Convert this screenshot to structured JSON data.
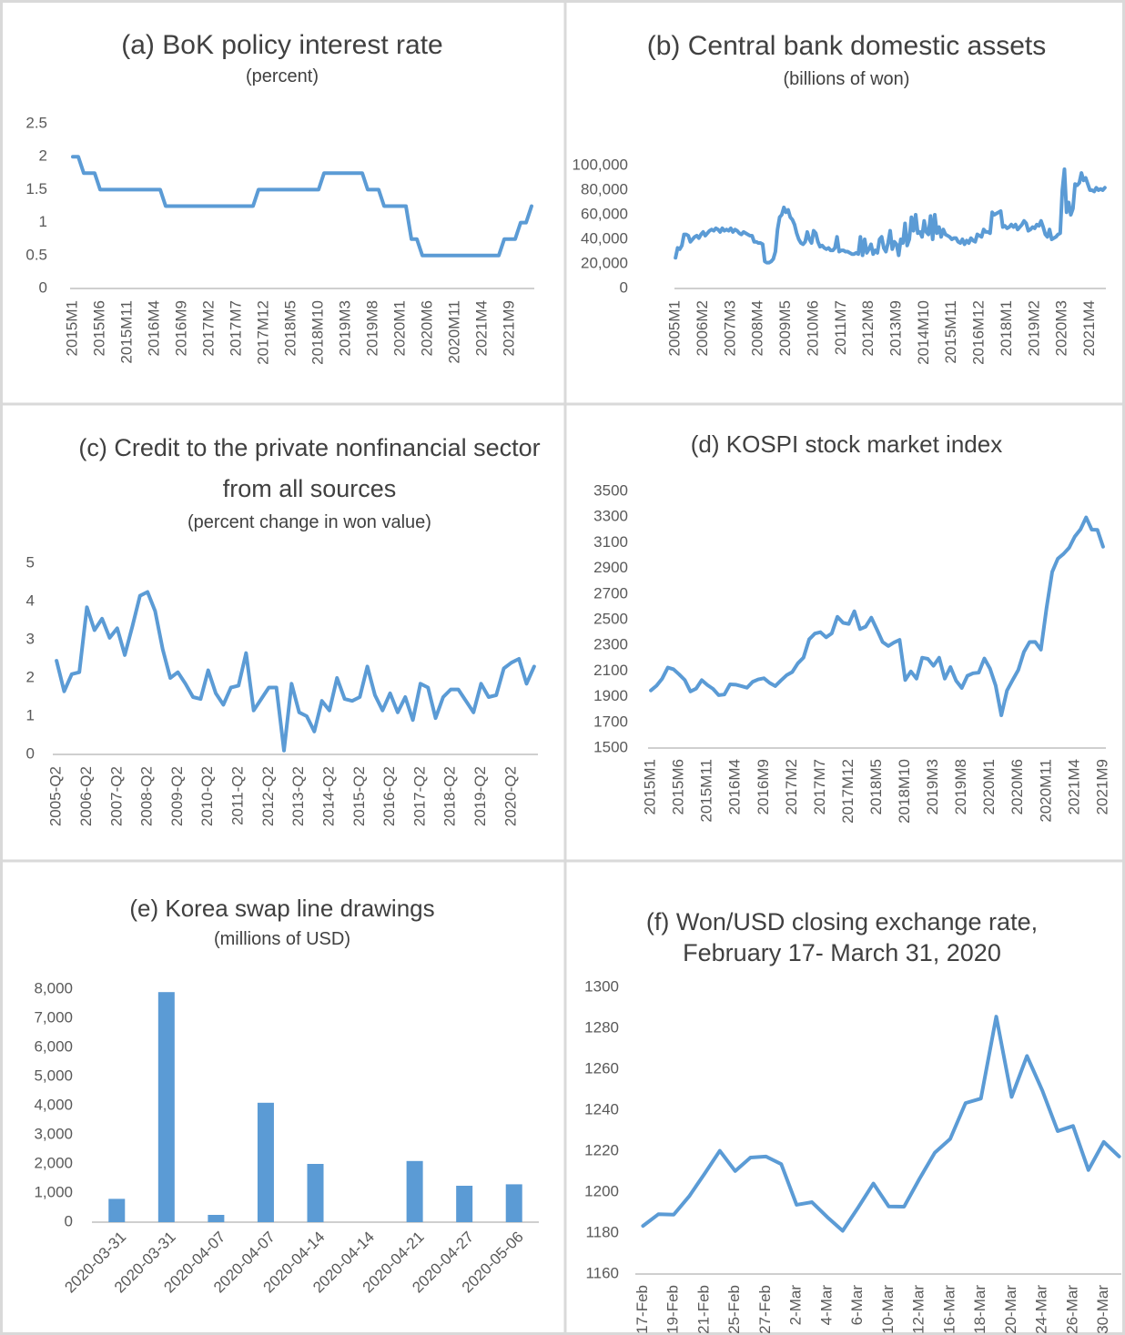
{
  "chart_data": [
    {
      "type": "line",
      "title": "(a) BoK policy interest rate",
      "subtitle": "(percent)",
      "color": "#5b9bd5",
      "grid": false,
      "ylim": [
        0,
        2.5
      ],
      "yticks": [
        0,
        0.5,
        1,
        1.5,
        2,
        2.5
      ],
      "categories": [
        "2015M1",
        null,
        null,
        null,
        null,
        "2015M6",
        null,
        null,
        null,
        null,
        "2015M11",
        null,
        null,
        null,
        null,
        "2016M4",
        null,
        null,
        null,
        null,
        "2016M9",
        null,
        null,
        null,
        null,
        "2017M2",
        null,
        null,
        null,
        null,
        "2017M7",
        null,
        null,
        null,
        null,
        "2017M12",
        null,
        null,
        null,
        null,
        "2018M5",
        null,
        null,
        null,
        null,
        "2018M10",
        null,
        null,
        null,
        null,
        "2019M3",
        null,
        null,
        null,
        null,
        "2019M8",
        null,
        null,
        null,
        null,
        "2020M1",
        null,
        null,
        null,
        null,
        "2020M6",
        null,
        null,
        null,
        null,
        "2020M11",
        null,
        null,
        null,
        null,
        "2021M4",
        null,
        null,
        null,
        null,
        "2021M9",
        null,
        null,
        null,
        null
      ],
      "values": [
        2,
        2,
        1.75,
        1.75,
        1.75,
        1.5,
        1.5,
        1.5,
        1.5,
        1.5,
        1.5,
        1.5,
        1.5,
        1.5,
        1.5,
        1.5,
        1.5,
        1.25,
        1.25,
        1.25,
        1.25,
        1.25,
        1.25,
        1.25,
        1.25,
        1.25,
        1.25,
        1.25,
        1.25,
        1.25,
        1.25,
        1.25,
        1.25,
        1.25,
        1.5,
        1.5,
        1.5,
        1.5,
        1.5,
        1.5,
        1.5,
        1.5,
        1.5,
        1.5,
        1.5,
        1.5,
        1.75,
        1.75,
        1.75,
        1.75,
        1.75,
        1.75,
        1.75,
        1.75,
        1.5,
        1.5,
        1.5,
        1.25,
        1.25,
        1.25,
        1.25,
        1.25,
        0.75,
        0.75,
        0.5,
        0.5,
        0.5,
        0.5,
        0.5,
        0.5,
        0.5,
        0.5,
        0.5,
        0.5,
        0.5,
        0.5,
        0.5,
        0.5,
        0.5,
        0.75,
        0.75,
        0.75,
        1,
        1,
        1.25
      ]
    },
    {
      "type": "line",
      "title": "(b) Central bank domestic assets",
      "subtitle": "(billions of won)",
      "color": "#5b9bd5",
      "grid": false,
      "ylim": [
        0,
        100000
      ],
      "yticks": [
        0,
        {
          "value": 20000,
          "label": "20,000"
        },
        {
          "value": 40000,
          "label": "40,000"
        },
        {
          "value": 60000,
          "label": "60,000"
        },
        {
          "value": 80000,
          "label": "80,000"
        },
        {
          "value": 100000,
          "label": "100,000"
        }
      ],
      "categories": [
        "2005M1",
        null,
        null,
        null,
        null,
        null,
        null,
        null,
        null,
        null,
        null,
        null,
        null,
        "2006M2",
        null,
        null,
        null,
        null,
        null,
        null,
        null,
        null,
        null,
        null,
        null,
        null,
        "2007M3",
        null,
        null,
        null,
        null,
        null,
        null,
        null,
        null,
        null,
        null,
        null,
        null,
        "2008M4",
        null,
        null,
        null,
        null,
        null,
        null,
        null,
        null,
        null,
        null,
        null,
        null,
        "2009M5",
        null,
        null,
        null,
        null,
        null,
        null,
        null,
        null,
        null,
        null,
        null,
        null,
        "2010M6",
        null,
        null,
        null,
        null,
        null,
        null,
        null,
        null,
        null,
        null,
        null,
        null,
        "2011M7",
        null,
        null,
        null,
        null,
        null,
        null,
        null,
        null,
        null,
        null,
        null,
        null,
        "2012M8",
        null,
        null,
        null,
        null,
        null,
        null,
        null,
        null,
        null,
        null,
        null,
        null,
        "2013M9",
        null,
        null,
        null,
        null,
        null,
        null,
        null,
        null,
        null,
        null,
        null,
        null,
        "2014M10",
        null,
        null,
        null,
        null,
        null,
        null,
        null,
        null,
        null,
        null,
        null,
        null,
        "2015M11",
        null,
        null,
        null,
        null,
        null,
        null,
        null,
        null,
        null,
        null,
        null,
        null,
        "2016M12",
        null,
        null,
        null,
        null,
        null,
        null,
        null,
        null,
        null,
        null,
        null,
        null,
        "2018M1",
        null,
        null,
        null,
        null,
        null,
        null,
        null,
        null,
        null,
        null,
        null,
        null,
        "2019M2",
        null,
        null,
        null,
        null,
        null,
        null,
        null,
        null,
        null,
        null,
        null,
        null,
        "2020M3",
        null,
        null,
        null,
        null,
        null,
        null,
        null,
        null,
        null,
        null,
        null,
        null,
        "2021M4",
        null,
        null,
        null,
        null,
        null,
        null,
        null
      ],
      "values": [
        25000,
        33000,
        32000,
        35000,
        44000,
        44000,
        43000,
        38000,
        40000,
        42000,
        43000,
        41000,
        44000,
        46000,
        43000,
        45000,
        47000,
        48000,
        47000,
        49000,
        48000,
        46000,
        49000,
        47000,
        48000,
        47000,
        49000,
        46000,
        48000,
        47000,
        45000,
        44000,
        46000,
        45000,
        44000,
        43000,
        43000,
        38000,
        38000,
        37000,
        37000,
        36000,
        22000,
        21000,
        21000,
        22000,
        24000,
        30000,
        48000,
        58000,
        60000,
        66000,
        62000,
        64000,
        58000,
        56000,
        52000,
        45000,
        40000,
        37000,
        36000,
        38000,
        46000,
        40000,
        37000,
        47000,
        45000,
        38000,
        34000,
        35000,
        33000,
        32000,
        33000,
        31000,
        31000,
        33000,
        42000,
        30000,
        31000,
        31000,
        30000,
        30000,
        29000,
        28000,
        28000,
        29000,
        28000,
        42000,
        27000,
        40000,
        29000,
        32000,
        36000,
        28000,
        31000,
        29000,
        40000,
        42000,
        33000,
        30000,
        37000,
        47000,
        32000,
        38000,
        36000,
        27000,
        40000,
        37000,
        53000,
        35000,
        40000,
        58000,
        47000,
        60000,
        45000,
        46000,
        42000,
        55000,
        46000,
        44000,
        59000,
        40000,
        60000,
        45000,
        50000,
        42000,
        48000,
        44000,
        43000,
        42000,
        40000,
        41000,
        41000,
        38000,
        37000,
        40000,
        36000,
        39000,
        37000,
        41000,
        39000,
        38000,
        44000,
        43000,
        42000,
        48000,
        46000,
        46000,
        45000,
        62000,
        60000,
        61000,
        62000,
        63000,
        50000,
        51000,
        49000,
        50000,
        52000,
        50000,
        52000,
        48000,
        50000,
        52000,
        55000,
        53000,
        47000,
        48000,
        50000,
        49000,
        52000,
        51000,
        55000,
        50000,
        44000,
        42000,
        48000,
        40000,
        41000,
        42000,
        44000,
        45000,
        80000,
        97000,
        62000,
        70000,
        60000,
        65000,
        85000,
        84000,
        86000,
        94000,
        88000,
        90000,
        85000,
        80000,
        80000,
        79000,
        82000,
        80000,
        81000,
        80000,
        82000
      ]
    },
    {
      "type": "line",
      "title": "(c) Credit to the private nonfinancial sector from all sources",
      "subtitle": "(percent change in won value)",
      "color": "#5b9bd5",
      "grid": false,
      "ylim": [
        0,
        5
      ],
      "yticks": [
        0,
        1,
        2,
        3,
        4,
        5
      ],
      "categories": [
        "2005-Q2",
        null,
        null,
        null,
        "2006-Q2",
        null,
        null,
        null,
        "2007-Q2",
        null,
        null,
        null,
        "2008-Q2",
        null,
        null,
        null,
        "2009-Q2",
        null,
        null,
        null,
        "2010-Q2",
        null,
        null,
        null,
        "2011-Q2",
        null,
        null,
        null,
        "2012-Q2",
        null,
        null,
        null,
        "2013-Q2",
        null,
        null,
        null,
        "2014-Q2",
        null,
        null,
        null,
        "2015-Q2",
        null,
        null,
        null,
        "2016-Q2",
        null,
        null,
        null,
        "2017-Q2",
        null,
        null,
        null,
        "2018-Q2",
        null,
        null,
        null,
        "2019-Q2",
        null,
        null,
        null,
        "2020-Q2",
        null,
        null,
        null
      ],
      "values": [
        2.45,
        1.65,
        2.1,
        2.15,
        3.85,
        3.25,
        3.55,
        3.05,
        3.3,
        2.6,
        3.35,
        4.15,
        4.25,
        3.75,
        2.75,
        2.0,
        2.15,
        1.85,
        1.5,
        1.45,
        2.2,
        1.6,
        1.3,
        1.75,
        1.8,
        2.65,
        1.15,
        1.45,
        1.75,
        1.75,
        0.1,
        1.85,
        1.1,
        1.0,
        0.6,
        1.4,
        1.15,
        2.0,
        1.45,
        1.4,
        1.5,
        2.3,
        1.55,
        1.15,
        1.6,
        1.1,
        1.5,
        0.9,
        1.85,
        1.75,
        0.95,
        1.5,
        1.7,
        1.7,
        1.4,
        1.1,
        1.85,
        1.5,
        1.55,
        2.25,
        2.4,
        2.5,
        1.85,
        2.3
      ]
    },
    {
      "type": "line",
      "title": "(d) KOSPI stock market index",
      "color": "#5b9bd5",
      "grid": false,
      "ylim": [
        1500,
        3500
      ],
      "yticks": [
        1500,
        1700,
        1900,
        2100,
        2300,
        2500,
        2700,
        2900,
        3100,
        3300,
        3500
      ],
      "categories": [
        "2015M1",
        null,
        null,
        null,
        null,
        "2015M6",
        null,
        null,
        null,
        null,
        "2015M11",
        null,
        null,
        null,
        null,
        "2016M4",
        null,
        null,
        null,
        null,
        "2016M9",
        null,
        null,
        null,
        null,
        "2017M2",
        null,
        null,
        null,
        null,
        "2017M7",
        null,
        null,
        null,
        null,
        "2017M12",
        null,
        null,
        null,
        null,
        "2018M5",
        null,
        null,
        null,
        null,
        "2018M10",
        null,
        null,
        null,
        null,
        "2019M3",
        null,
        null,
        null,
        null,
        "2019M8",
        null,
        null,
        null,
        null,
        "2020M1",
        null,
        null,
        null,
        null,
        "2020M6",
        null,
        null,
        null,
        null,
        "2020M11",
        null,
        null,
        null,
        null,
        "2021M4",
        null,
        null,
        null,
        null,
        "2021M9"
      ],
      "values": [
        1949,
        1986,
        2041,
        2127,
        2114,
        2074,
        2030,
        1941,
        1963,
        2029,
        1991,
        1961,
        1912,
        1917,
        1996,
        1994,
        1983,
        1970,
        2016,
        2035,
        2044,
        2008,
        1983,
        2026,
        2067,
        2092,
        2160,
        2205,
        2347,
        2392,
        2403,
        2363,
        2394,
        2523,
        2476,
        2467,
        2566,
        2427,
        2446,
        2516,
        2423,
        2326,
        2295,
        2322,
        2343,
        2030,
        2097,
        2041,
        2204,
        2195,
        2141,
        2204,
        2041,
        2131,
        2025,
        1968,
        2063,
        2083,
        2088,
        2198,
        2119,
        1987,
        1755,
        1948,
        2030,
        2108,
        2249,
        2326,
        2327,
        2267,
        2591,
        2873,
        2976,
        3013,
        3061,
        3148,
        3204,
        3297,
        3202,
        3200,
        3069
      ]
    },
    {
      "type": "bar",
      "title": "(e) Korea swap line drawings",
      "subtitle": "(millions of USD)",
      "color": "#5b9bd5",
      "grid": false,
      "ylim": [
        0,
        8000
      ],
      "yticks": [
        0,
        {
          "value": 1000,
          "label": "1,000"
        },
        {
          "value": 2000,
          "label": "2,000"
        },
        {
          "value": 3000,
          "label": "3,000"
        },
        {
          "value": 4000,
          "label": "4,000"
        },
        {
          "value": 5000,
          "label": "5,000"
        },
        {
          "value": 6000,
          "label": "6,000"
        },
        {
          "value": 7000,
          "label": "7,000"
        },
        {
          "value": 8000,
          "label": "8,000"
        }
      ],
      "categories": [
        "2020-03-31",
        "2020-03-31",
        "2020-04-07",
        "2020-04-07",
        "2020-04-14",
        "2020-04-14",
        "2020-04-21",
        "2020-04-27",
        "2020-05-06"
      ],
      "values": [
        800,
        7900,
        250,
        4100,
        2000,
        null,
        2100,
        1250,
        1300
      ]
    },
    {
      "type": "line",
      "title": "(f) Won/USD closing exchange rate, February 17- March 31, 2020",
      "color": "#5b9bd5",
      "grid": false,
      "ylim": [
        1160,
        1300
      ],
      "yticks": [
        1160,
        1180,
        1200,
        1220,
        1240,
        1260,
        1280,
        1300
      ],
      "categories": [
        "17-Feb",
        null,
        "19-Feb",
        null,
        "21-Feb",
        null,
        "25-Feb",
        null,
        "27-Feb",
        null,
        "2-Mar",
        null,
        "4-Mar",
        null,
        "6-Mar",
        null,
        "10-Mar",
        null,
        "12-Mar",
        null,
        "16-Mar",
        null,
        "18-Mar",
        null,
        "20-Mar",
        null,
        "24-Mar",
        null,
        "26-Mar",
        null,
        "30-Mar",
        null
      ],
      "values": [
        1183.5,
        1189.2,
        1189,
        1197.9,
        1208.9,
        1220.2,
        1210.3,
        1216.9,
        1217.4,
        1213.7,
        1193.8,
        1195.1,
        1187.8,
        1181.1,
        1192.4,
        1204.2,
        1193,
        1192.9,
        1206.5,
        1219.3,
        1226,
        1243.5,
        1245.7,
        1285.7,
        1246.5,
        1266.5,
        1249.6,
        1229.8,
        1232.3,
        1210.8,
        1224.5,
        1217.4
      ]
    }
  ]
}
